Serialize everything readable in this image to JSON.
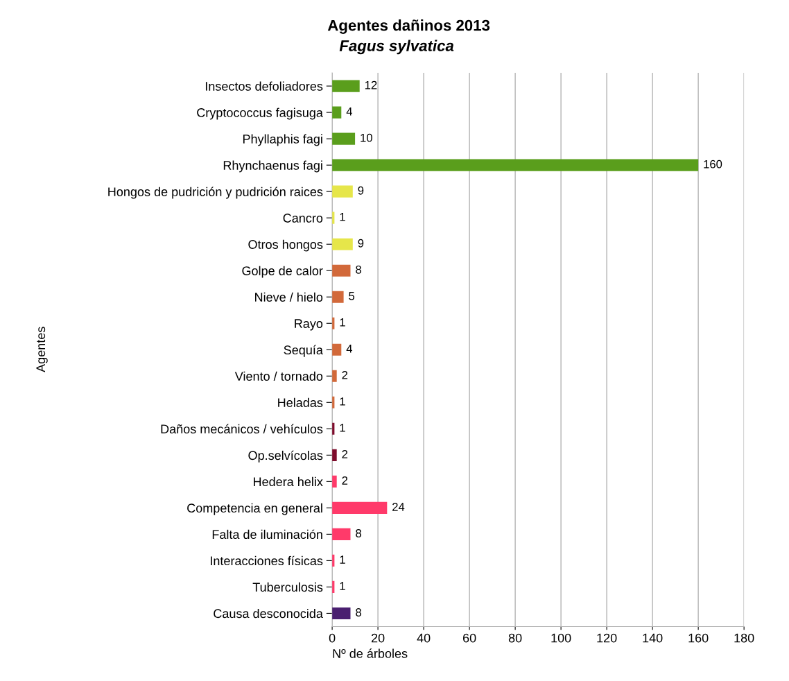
{
  "chart_data": {
    "type": "bar",
    "orientation": "horizontal",
    "title": "Agentes dañinos 2013",
    "subtitle": "Fagus sylvatica",
    "xlabel": "Nº de árboles",
    "ylabel": "Agentes",
    "categories": [
      "Insectos defoliadores",
      "Cryptococcus fagisuga",
      "Phyllaphis fagi",
      "Rhynchaenus fagi",
      "Hongos de pudrición y pudrición raices",
      "Cancro",
      "Otros hongos",
      "Golpe de calor",
      "Nieve / hielo",
      "Rayo",
      "Sequía",
      "Viento / tornado",
      "Heladas",
      "Daños mecánicos / vehículos",
      "Op.selvícolas",
      "Hedera helix",
      "Competencia en general",
      "Falta de iluminación",
      "Interacciones físicas",
      "Tuberculosis",
      "Causa desconocida"
    ],
    "values": [
      12,
      4,
      10,
      160,
      9,
      1,
      9,
      8,
      5,
      1,
      4,
      2,
      1,
      1,
      2,
      2,
      24,
      8,
      1,
      1,
      8
    ],
    "colors": [
      "#5a9e1c",
      "#5a9e1c",
      "#5a9e1c",
      "#5a9e1c",
      "#e6e64a",
      "#e6e64a",
      "#e6e64a",
      "#d2693a",
      "#d2693a",
      "#d2693a",
      "#d2693a",
      "#d2693a",
      "#d2693a",
      "#7e0c2c",
      "#7e0c2c",
      "#ff3a6a",
      "#ff3a6a",
      "#ff3a6a",
      "#ff3a6a",
      "#ff3a6a",
      "#4a1f70"
    ],
    "xlim": [
      0,
      180
    ],
    "xticks": [
      0,
      20,
      40,
      60,
      80,
      100,
      120,
      140,
      160,
      180
    ],
    "grid": "x",
    "data_labels": true
  }
}
